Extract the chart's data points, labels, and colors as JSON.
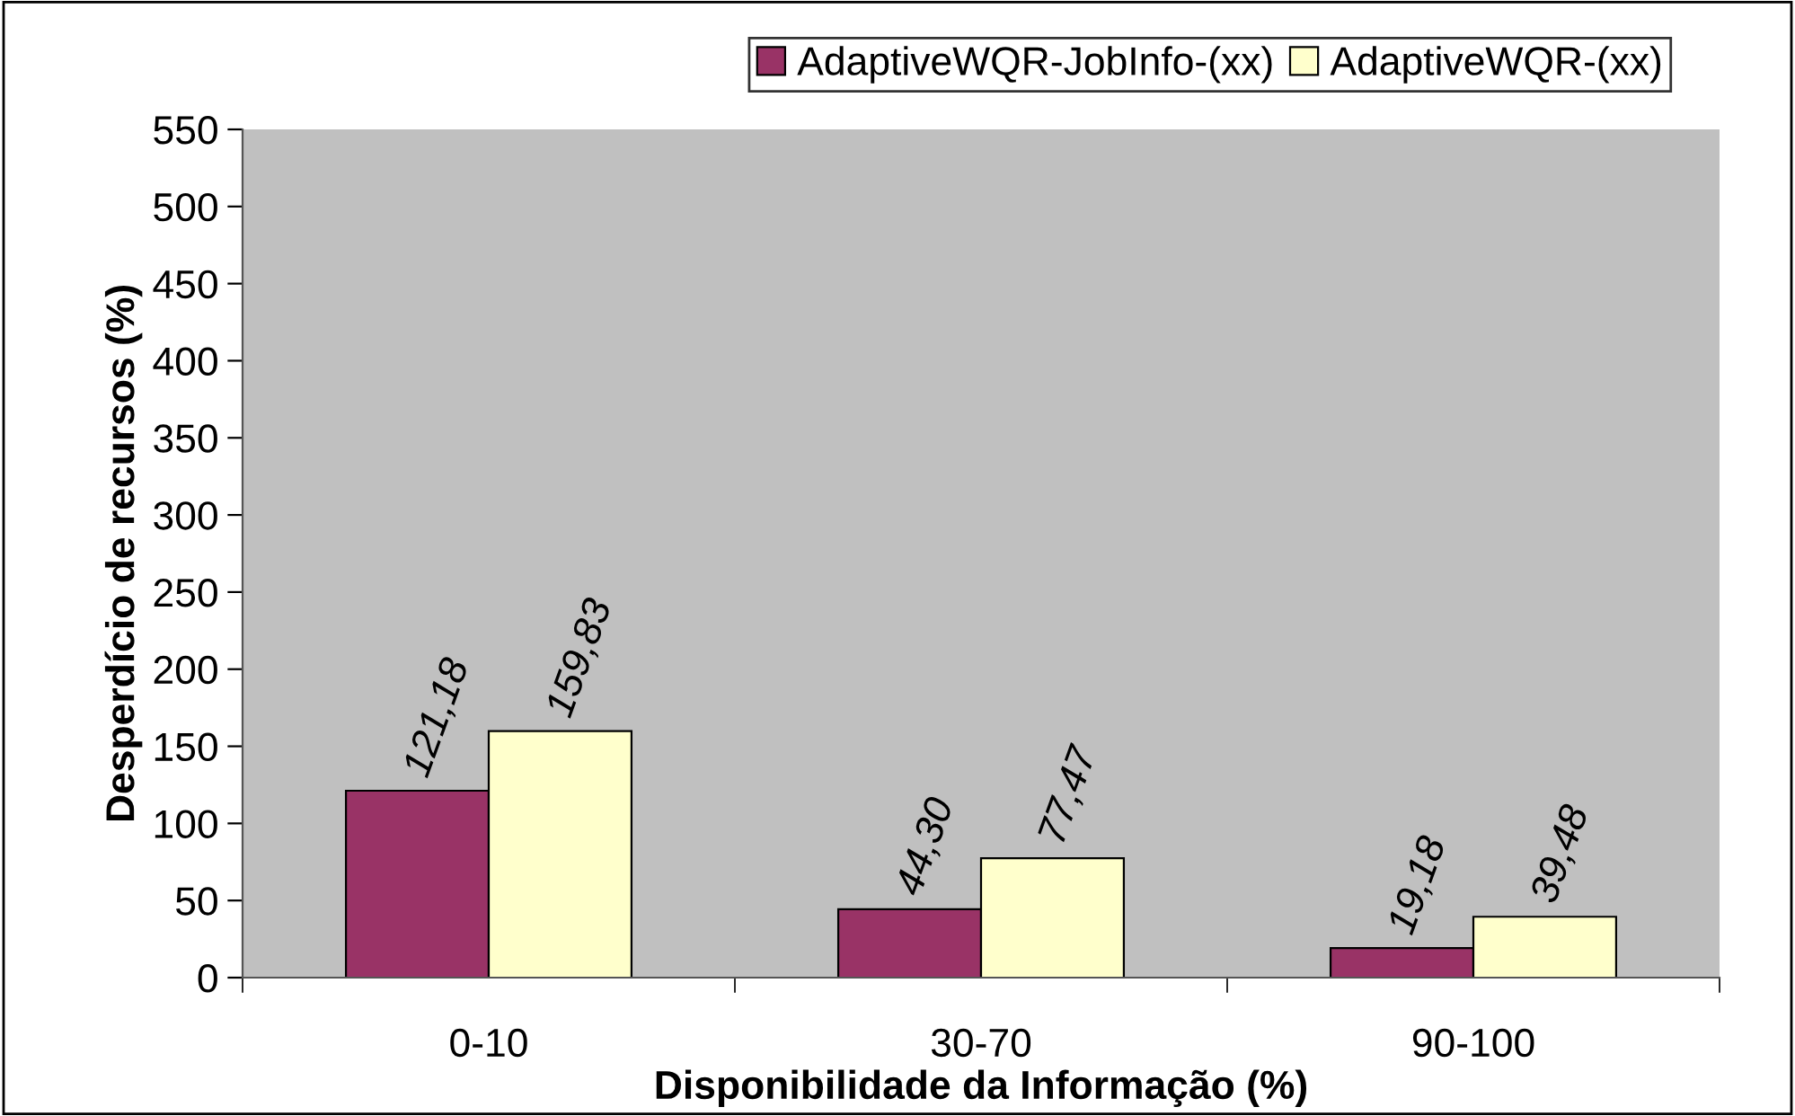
{
  "chart_data": {
    "type": "bar",
    "xlabel": "Disponibilidade da Informação (%)",
    "ylabel": "Desperdício de recursos (%)",
    "categories": [
      "0-10",
      "30-70",
      "90-100"
    ],
    "series": [
      {
        "name": "AdaptiveWQR-JobInfo-(xx)",
        "color": "#993366",
        "values": [
          121.18,
          44.3,
          19.18
        ],
        "value_labels": [
          "121,18",
          "44,30",
          "19,18"
        ]
      },
      {
        "name": "AdaptiveWQR-(xx)",
        "color": "#ffffcc",
        "values": [
          159.83,
          77.47,
          39.48
        ],
        "value_labels": [
          "159,83",
          "77,47",
          "39,48"
        ]
      }
    ],
    "ylim": [
      0,
      550
    ],
    "yticks": [
      0,
      50,
      100,
      150,
      200,
      250,
      300,
      350,
      400,
      450,
      500,
      550
    ],
    "grid": false,
    "legend": "top right"
  }
}
